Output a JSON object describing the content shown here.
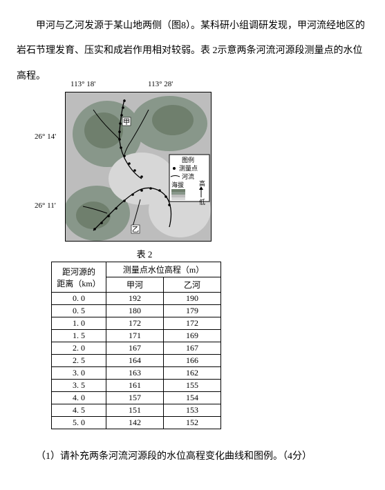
{
  "paragraph": {
    "text": "甲河与乙河发源于某山地两侧（图8）。某科研小组调研发现，甲河流经地区的岩石节理发育、压实和成岩作用相对较弱。表 2示意两条河流河源段测量点的水位高程。"
  },
  "map": {
    "coords": {
      "lon_left": "113° 18'",
      "lon_right": "113° 28'",
      "lat_top": "26° 14'",
      "lat_bottom": "26° 11'"
    },
    "legend": {
      "title": "图例",
      "point": "测量点",
      "river": "河流",
      "elev": "海拔",
      "high": "高",
      "low": "低"
    },
    "colors": {
      "bg_high1": "#6f7f6d",
      "bg_high2": "#88978a",
      "bg_mid": "#b0b0b0",
      "bg_low": "#d7d7d7",
      "river": "#000000",
      "point": "#000000"
    }
  },
  "table": {
    "caption": "表 2",
    "header": {
      "col1_l1": "距河源的",
      "col1_l2": "距离（km）",
      "merged": "测量点水位高程（m）",
      "sub1": "甲河",
      "sub2": "乙河"
    },
    "rows": [
      {
        "d": "0. 0",
        "a": "192",
        "b": "190"
      },
      {
        "d": "0. 5",
        "a": "180",
        "b": "179"
      },
      {
        "d": "1. 0",
        "a": "172",
        "b": "172"
      },
      {
        "d": "1. 5",
        "a": "171",
        "b": "169"
      },
      {
        "d": "2. 0",
        "a": "167",
        "b": "167"
      },
      {
        "d": "2. 5",
        "a": "164",
        "b": "166"
      },
      {
        "d": "3. 0",
        "a": "163",
        "b": "162"
      },
      {
        "d": "3. 5",
        "a": "161",
        "b": "155"
      },
      {
        "d": "4. 0",
        "a": "157",
        "b": "154"
      },
      {
        "d": "4. 5",
        "a": "151",
        "b": "153"
      },
      {
        "d": "5. 0",
        "a": "142",
        "b": "152"
      }
    ]
  },
  "question": {
    "text": "（1）请补充两条河流河源段的水位高程变化曲线和图例。（4分）"
  }
}
